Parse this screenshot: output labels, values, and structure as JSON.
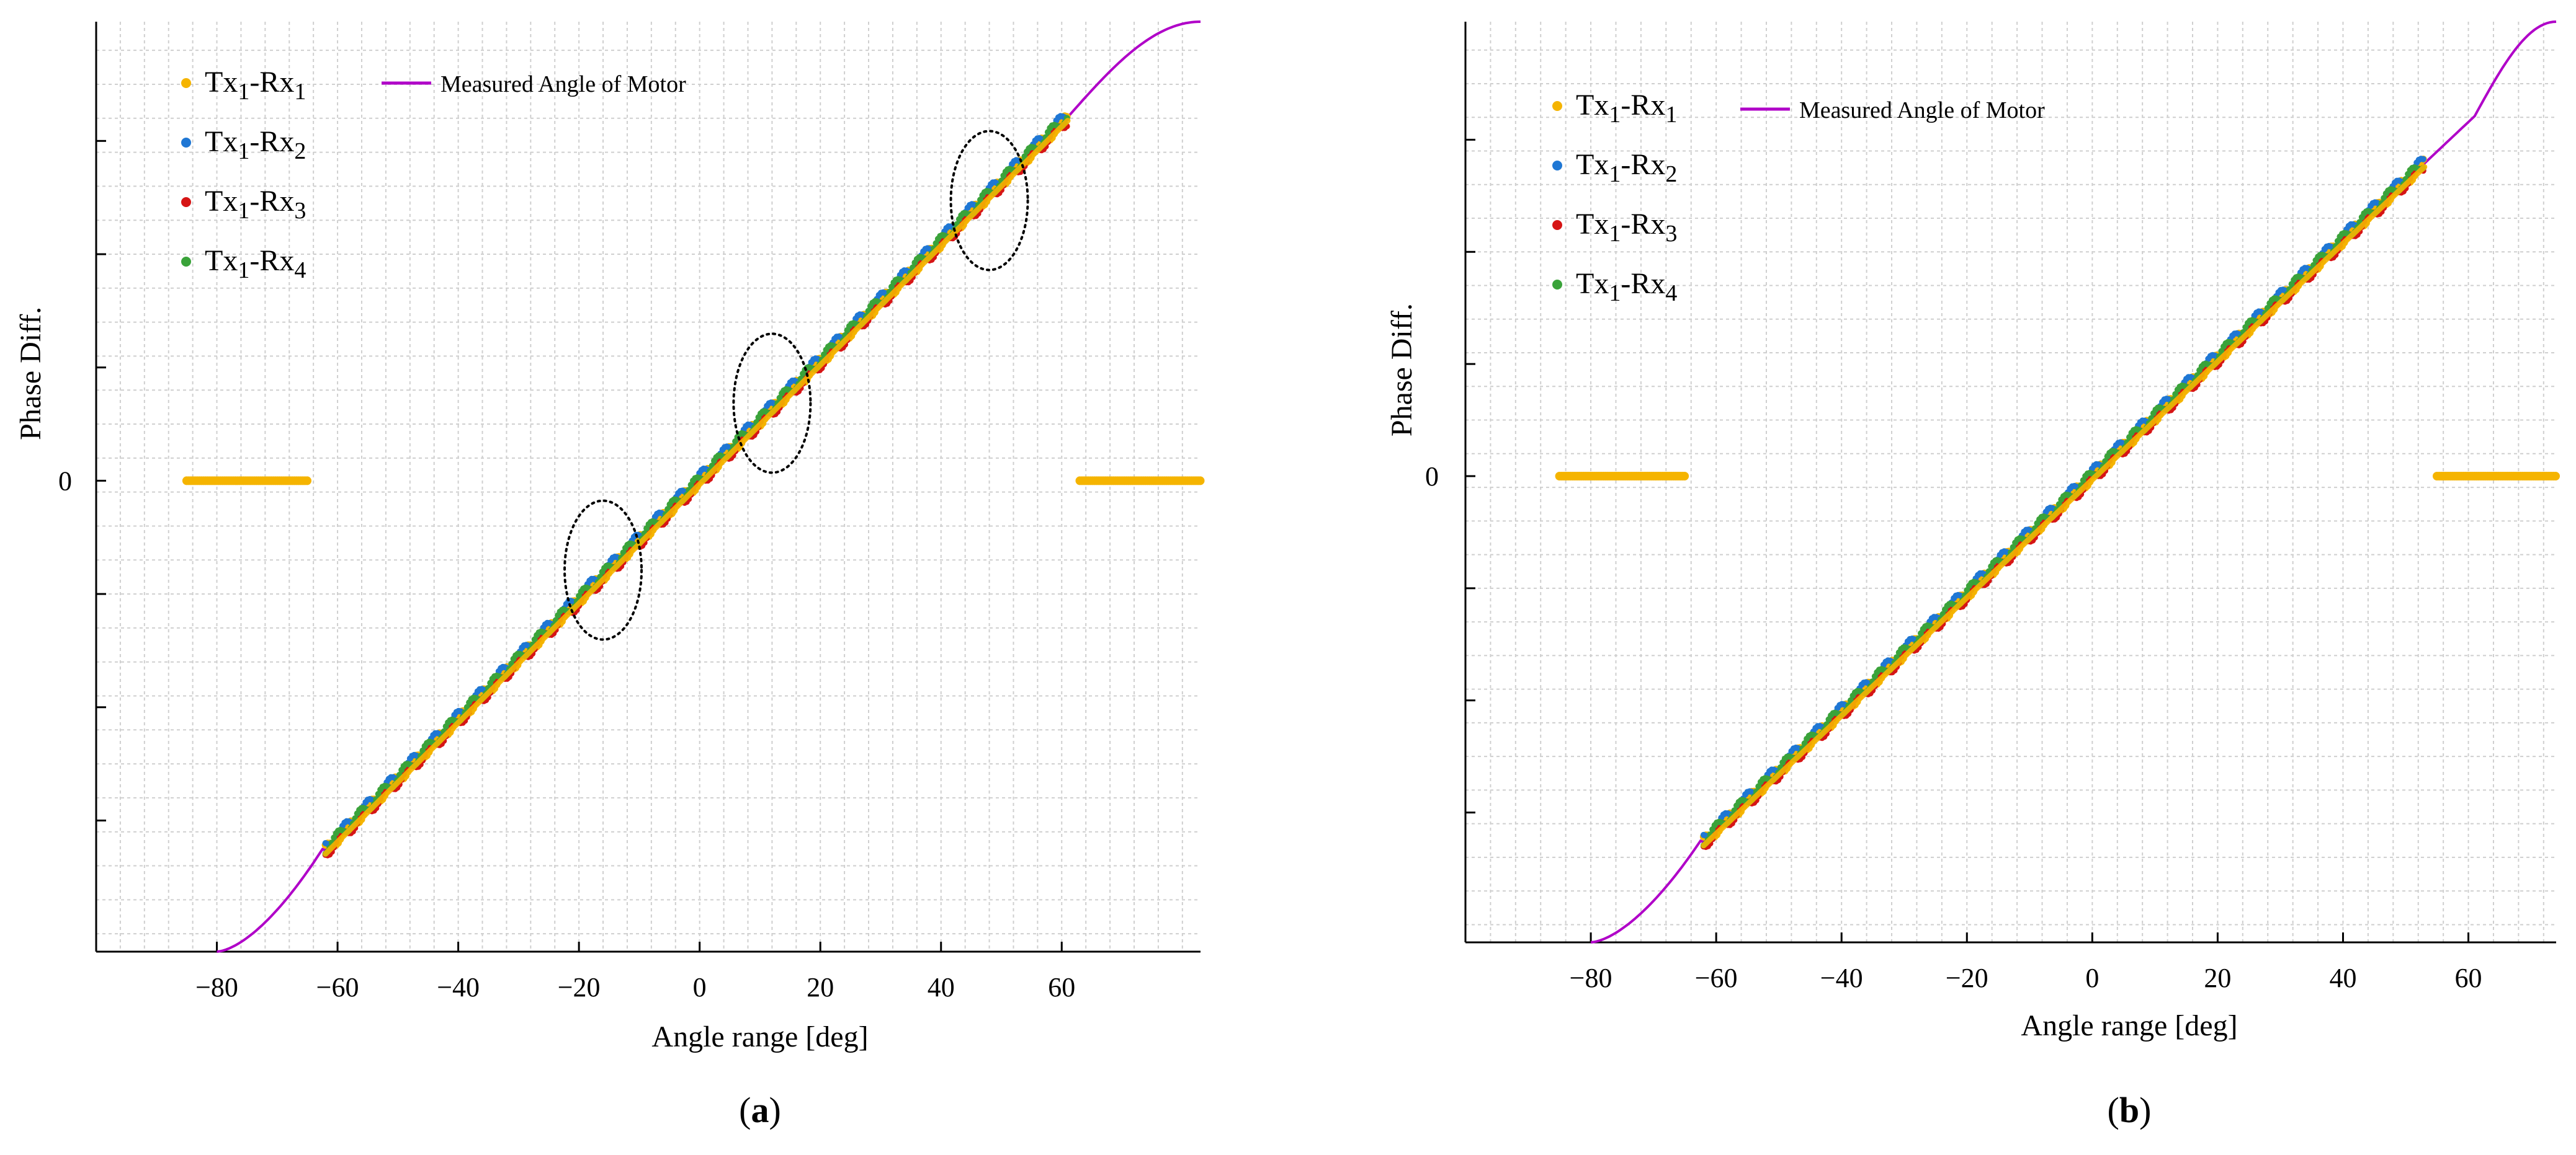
{
  "chart_data": [
    {
      "type": "scatter",
      "panel": "a",
      "caption": "(a)",
      "xlabel": "Angle range [deg]",
      "ylabel": "Phase Diff.",
      "xticks": [
        "−80",
        "−60",
        "−40",
        "−20",
        "0",
        "20",
        "40",
        "60"
      ],
      "xtick_values": [
        -80,
        -60,
        -40,
        -20,
        0,
        20,
        40,
        60
      ],
      "ytick_label": "0",
      "xlim": [
        -100,
        83
      ],
      "ylim": [
        -79,
        77
      ],
      "grid": true,
      "legend_position": "top-left",
      "series": [
        {
          "name": "Tx1-Rx1",
          "label_main": "Tx",
          "sub1": "1",
          "mid": "-Rx",
          "sub2": "1",
          "color": "#f5b400",
          "x_range": [
            -62,
            61
          ],
          "zero_segments": [
            [
              -85,
              -65
            ],
            [
              63,
              83
            ]
          ]
        },
        {
          "name": "Tx1-Rx2",
          "label_main": "Tx",
          "sub1": "1",
          "mid": "-Rx",
          "sub2": "2",
          "color": "#1f77d4",
          "x_range": [
            -62,
            61
          ]
        },
        {
          "name": "Tx1-Rx3",
          "label_main": "Tx",
          "sub1": "1",
          "mid": "-Rx",
          "sub2": "3",
          "color": "#d61515",
          "x_range": [
            -62,
            61
          ]
        },
        {
          "name": "Tx1-Rx4",
          "label_main": "Tx",
          "sub1": "1",
          "mid": "-Rx",
          "sub2": "4",
          "color": "#3aa33a",
          "x_range": [
            -62,
            61
          ]
        }
      ],
      "reference": {
        "name": "Measured Angle of Motor",
        "color": "#b000c8",
        "x_range": [
          -80,
          83
        ]
      },
      "annotations": [
        {
          "type": "ellipse",
          "cx": -16,
          "cy": -15
        },
        {
          "type": "ellipse",
          "cx": 12,
          "cy": 13
        },
        {
          "type": "ellipse",
          "cx": 48,
          "cy": 47
        }
      ]
    },
    {
      "type": "scatter",
      "panel": "b",
      "caption": "(b)",
      "xlabel": "Angle range [deg]",
      "ylabel": "Phase Diff.",
      "xticks": [
        "−80",
        "−60",
        "−40",
        "−20",
        "0",
        "20",
        "40",
        "60"
      ],
      "xtick_values": [
        -80,
        -60,
        -40,
        -20,
        0,
        20,
        40,
        60
      ],
      "ytick_label": "0",
      "xlim": [
        -100,
        74
      ],
      "ylim": [
        -79,
        77
      ],
      "grid": true,
      "legend_position": "top-left",
      "series": [
        {
          "name": "Tx1-Rx1",
          "label_main": "Tx",
          "sub1": "1",
          "mid": "-Rx",
          "sub2": "1",
          "color": "#f5b400",
          "x_range": [
            -62,
            53
          ],
          "zero_segments": [
            [
              -85,
              -65
            ],
            [
              55,
              74
            ]
          ]
        },
        {
          "name": "Tx1-Rx2",
          "label_main": "Tx",
          "sub1": "1",
          "mid": "-Rx",
          "sub2": "2",
          "color": "#1f77d4",
          "x_range": [
            -62,
            53
          ]
        },
        {
          "name": "Tx1-Rx3",
          "label_main": "Tx",
          "sub1": "1",
          "mid": "-Rx",
          "sub2": "3",
          "color": "#d61515",
          "x_range": [
            -62,
            53
          ]
        },
        {
          "name": "Tx1-Rx4",
          "label_main": "Tx",
          "sub1": "1",
          "mid": "-Rx",
          "sub2": "4",
          "color": "#3aa33a",
          "x_range": [
            -62,
            53
          ]
        }
      ],
      "reference": {
        "name": "Measured Angle of Motor",
        "color": "#b000c8",
        "x_range": [
          -80,
          74
        ]
      },
      "annotations": []
    }
  ]
}
